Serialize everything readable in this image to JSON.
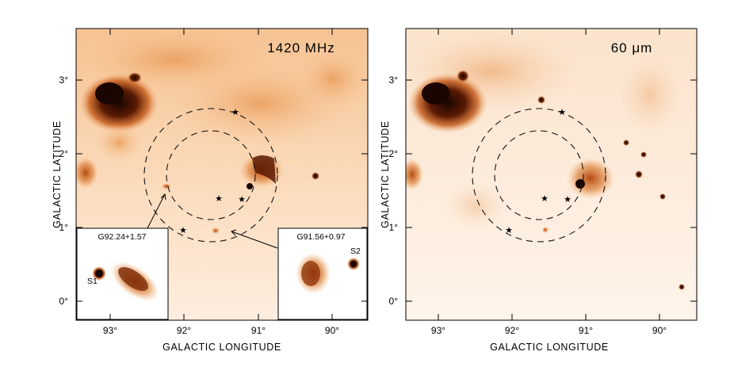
{
  "figure": {
    "left_panel": {
      "label": "1420 MHz",
      "x_axis_title": "GALACTIC LONGITUDE",
      "y_axis_title": "GALACTIC LATITUDE",
      "x_ticks": [
        "93°",
        "92°",
        "91°",
        "90°"
      ],
      "y_ticks": [
        "3°",
        "2°",
        "1°",
        "0°"
      ],
      "insets": [
        {
          "title": "G92.24+1.57",
          "source_label": "S1"
        },
        {
          "title": "G91.56+0.97",
          "source_label": "S2"
        }
      ]
    },
    "right_panel": {
      "label": "60 μm",
      "x_axis_title": "GALACTIC LONGITUDE",
      "y_axis_title": "GALACTIC LATITUDE",
      "x_ticks": [
        "93°",
        "92°",
        "91°",
        "90°"
      ],
      "y_ticks": [
        "3°",
        "2°",
        "1°",
        "0°"
      ]
    },
    "colors": {
      "emission_dark": "#2a0a00",
      "emission_mid": "#c55a18",
      "emission_light": "#f3b57a",
      "background_wash": "#fde8d4"
    }
  }
}
